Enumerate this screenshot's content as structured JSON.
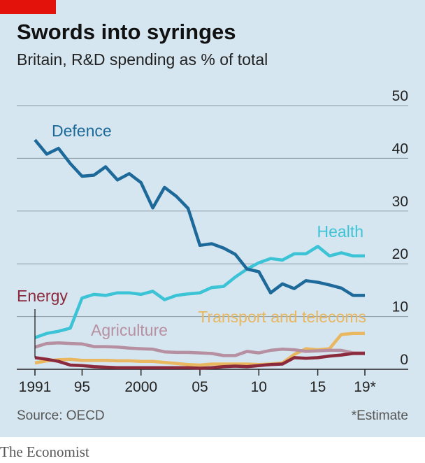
{
  "title": "Swords into syringes",
  "subtitle": "Britain, R&D spending as % of total",
  "source": "Source: OECD",
  "note": "*Estimate",
  "brand": "The Economist",
  "colors": {
    "background": "#d6e6f0",
    "grid": "#8a98a3",
    "defence": "#1d6a9a",
    "health": "#3cc3d6",
    "transport": "#e8b760",
    "agriculture": "#b690a0",
    "energy": "#8b2a3c",
    "brand_red": "#e3120b"
  },
  "chart_data": {
    "type": "line",
    "x": [
      1991,
      1992,
      1993,
      1994,
      1995,
      1996,
      1997,
      1998,
      1999,
      2000,
      2001,
      2002,
      2003,
      2004,
      2005,
      2006,
      2007,
      2008,
      2009,
      2010,
      2011,
      2012,
      2013,
      2014,
      2015,
      2016,
      2017,
      2018,
      2019
    ],
    "x_tick_labels": [
      "1991",
      "95",
      "2000",
      "05",
      "10",
      "15",
      "19*"
    ],
    "x_tick_values": [
      1991,
      1995,
      2000,
      2005,
      2010,
      2015,
      2019
    ],
    "y_ticks": [
      0,
      10,
      20,
      30,
      40,
      50
    ],
    "ylim": [
      0,
      50
    ],
    "xlim": [
      1991,
      2019
    ],
    "grid": true,
    "series": [
      {
        "key": "defence",
        "name": "Defence",
        "values": [
          43.5,
          40.8,
          41.9,
          39,
          36.6,
          36.8,
          38.4,
          35.9,
          37.1,
          35.4,
          30.6,
          34.5,
          32.8,
          30.5,
          23.5,
          23.8,
          23,
          21.8,
          19,
          18.5,
          14.5,
          16.2,
          15.3,
          16.8,
          16.5,
          16,
          15.4,
          14,
          14
        ]
      },
      {
        "key": "health",
        "name": "Health",
        "values": [
          6,
          6.8,
          7.2,
          7.8,
          13.5,
          14.2,
          14,
          14.5,
          14.5,
          14.2,
          14.8,
          13.2,
          14,
          14.3,
          14.5,
          15.5,
          15.7,
          17.5,
          19,
          20.2,
          21,
          20.7,
          21.9,
          21.9,
          23.3,
          21.5,
          22.1,
          21.5,
          21.5
        ]
      },
      {
        "key": "transport",
        "name": "Transport and telecoms",
        "values": [
          1.2,
          1.6,
          1.8,
          1.9,
          1.7,
          1.7,
          1.7,
          1.6,
          1.6,
          1.5,
          1.5,
          1.3,
          1.1,
          0.9,
          0.8,
          1,
          1,
          1,
          1,
          0.9,
          1,
          1.2,
          2.8,
          3.9,
          3.7,
          3.9,
          6.6,
          6.8,
          6.8
        ]
      },
      {
        "key": "agriculture",
        "name": "Agriculture",
        "values": [
          4.2,
          4.9,
          5,
          4.9,
          4.8,
          4.3,
          4.3,
          4.2,
          4,
          3.9,
          3.8,
          3.3,
          3.2,
          3.2,
          3.1,
          3,
          2.6,
          2.6,
          3.4,
          3.1,
          3.6,
          3.8,
          3.7,
          3.4,
          3.5,
          3.6,
          3.6,
          3.1,
          3.1
        ]
      },
      {
        "key": "energy",
        "name": "Energy",
        "values": [
          2.2,
          1.9,
          1.5,
          0.8,
          0.7,
          0.5,
          0.4,
          0.3,
          0.3,
          0.3,
          0.3,
          0.3,
          0.3,
          0.3,
          0.2,
          0.3,
          0.5,
          0.6,
          0.5,
          0.7,
          0.9,
          1,
          2.2,
          2.1,
          2.2,
          2.5,
          2.7,
          3,
          3
        ]
      }
    ]
  }
}
